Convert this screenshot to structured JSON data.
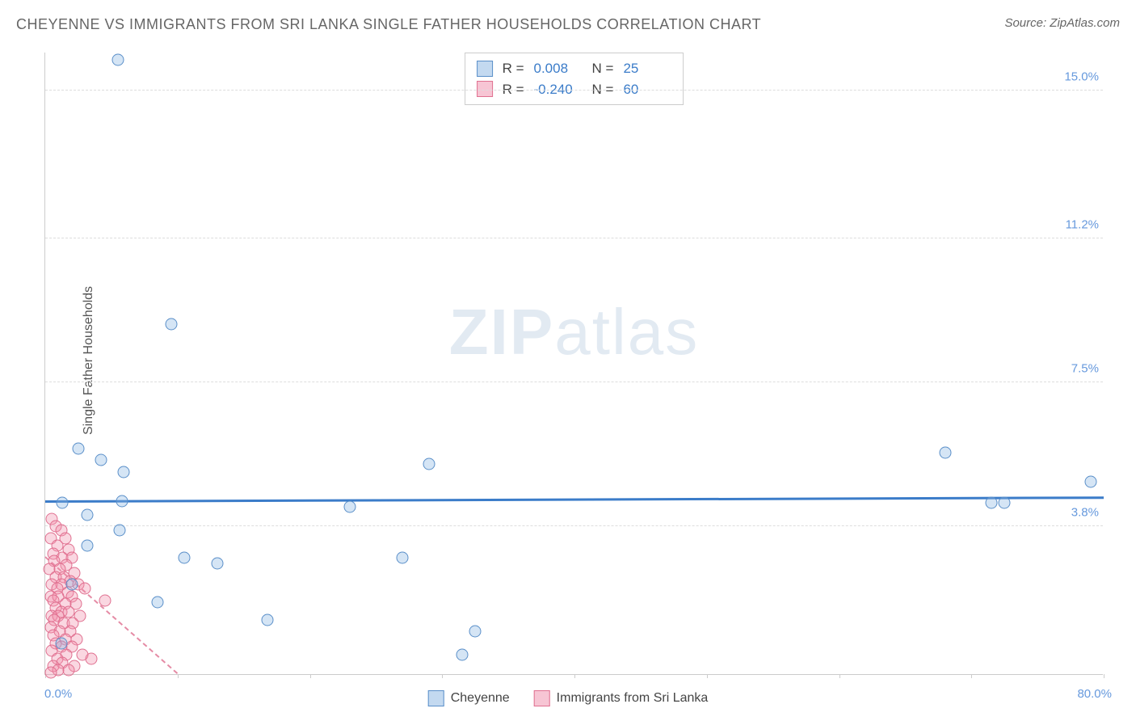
{
  "title": "CHEYENNE VS IMMIGRANTS FROM SRI LANKA SINGLE FATHER HOUSEHOLDS CORRELATION CHART",
  "source": "Source: ZipAtlas.com",
  "y_axis_label": "Single Father Households",
  "watermark_a": "ZIP",
  "watermark_b": "atlas",
  "chart": {
    "type": "scatter",
    "xlim": [
      0,
      80
    ],
    "ylim": [
      0,
      16
    ],
    "y_ticks": [
      {
        "v": 3.8,
        "label": "3.8%"
      },
      {
        "v": 7.5,
        "label": "7.5%"
      },
      {
        "v": 11.2,
        "label": "11.2%"
      },
      {
        "v": 15.0,
        "label": "15.0%"
      }
    ],
    "x_ticks": [
      0,
      10,
      20,
      30,
      40,
      50,
      60,
      70,
      80
    ],
    "x_label_min": "0.0%",
    "x_label_max": "80.0%",
    "background_color": "#ffffff",
    "grid_color": "#dddddd",
    "marker_size": 15,
    "series_a": {
      "name": "Cheyenne",
      "color_fill": "rgba(135,180,225,0.35)",
      "color_border": "#5a8fc9",
      "R_label": "R =",
      "R": "0.008",
      "N_label": "N =",
      "N": "25",
      "trend": {
        "x1": 0,
        "y1": 4.4,
        "x2": 80,
        "y2": 4.5,
        "color": "#3b7cc9",
        "width": 3,
        "dash": "solid"
      },
      "points": [
        [
          5.5,
          15.8
        ],
        [
          9.5,
          9.0
        ],
        [
          2.5,
          5.8
        ],
        [
          4.2,
          5.5
        ],
        [
          5.9,
          5.2
        ],
        [
          5.8,
          4.45
        ],
        [
          1.3,
          4.4
        ],
        [
          3.2,
          4.1
        ],
        [
          5.6,
          3.7
        ],
        [
          3.2,
          3.3
        ],
        [
          10.5,
          3.0
        ],
        [
          13.0,
          2.85
        ],
        [
          27.0,
          3.0
        ],
        [
          2.0,
          2.3
        ],
        [
          8.5,
          1.85
        ],
        [
          16.8,
          1.4
        ],
        [
          32.5,
          1.1
        ],
        [
          1.2,
          0.8
        ],
        [
          23.0,
          4.3
        ],
        [
          29.0,
          5.4
        ],
        [
          31.5,
          0.5
        ],
        [
          68.0,
          5.7
        ],
        [
          71.5,
          4.4
        ],
        [
          72.5,
          4.4
        ],
        [
          79.0,
          4.95
        ]
      ]
    },
    "series_b": {
      "name": "Immigrants from Sri Lanka",
      "color_fill": "rgba(240,140,170,0.35)",
      "color_border": "#e07090",
      "R_label": "R =",
      "R": "-0.240",
      "N_label": "N =",
      "N": "60",
      "trend": {
        "x1": 0,
        "y1": 3.0,
        "x2": 10,
        "y2": 0.0,
        "color": "#e58ba5",
        "width": 2,
        "dash": "dashed"
      },
      "points": [
        [
          0.5,
          4.0
        ],
        [
          0.8,
          3.8
        ],
        [
          1.2,
          3.7
        ],
        [
          0.4,
          3.5
        ],
        [
          1.5,
          3.5
        ],
        [
          0.9,
          3.3
        ],
        [
          1.8,
          3.2
        ],
        [
          0.6,
          3.1
        ],
        [
          1.3,
          3.0
        ],
        [
          2.0,
          3.0
        ],
        [
          0.7,
          2.9
        ],
        [
          1.6,
          2.8
        ],
        [
          0.3,
          2.7
        ],
        [
          1.1,
          2.7
        ],
        [
          2.2,
          2.6
        ],
        [
          0.8,
          2.5
        ],
        [
          1.4,
          2.5
        ],
        [
          1.9,
          2.4
        ],
        [
          0.5,
          2.3
        ],
        [
          1.2,
          2.3
        ],
        [
          2.5,
          2.3
        ],
        [
          0.9,
          2.2
        ],
        [
          1.7,
          2.1
        ],
        [
          0.4,
          2.0
        ],
        [
          1.0,
          2.0
        ],
        [
          2.0,
          2.0
        ],
        [
          3.0,
          2.2
        ],
        [
          0.6,
          1.9
        ],
        [
          1.5,
          1.8
        ],
        [
          2.3,
          1.8
        ],
        [
          0.8,
          1.7
        ],
        [
          1.2,
          1.6
        ],
        [
          1.8,
          1.6
        ],
        [
          0.5,
          1.5
        ],
        [
          1.0,
          1.5
        ],
        [
          2.6,
          1.5
        ],
        [
          0.7,
          1.4
        ],
        [
          1.4,
          1.3
        ],
        [
          2.1,
          1.3
        ],
        [
          0.4,
          1.2
        ],
        [
          1.1,
          1.1
        ],
        [
          1.9,
          1.1
        ],
        [
          0.6,
          1.0
        ],
        [
          1.5,
          0.9
        ],
        [
          2.4,
          0.9
        ],
        [
          0.8,
          0.8
        ],
        [
          1.2,
          0.7
        ],
        [
          2.0,
          0.7
        ],
        [
          0.5,
          0.6
        ],
        [
          1.6,
          0.5
        ],
        [
          2.8,
          0.5
        ],
        [
          0.9,
          0.4
        ],
        [
          1.3,
          0.3
        ],
        [
          3.5,
          0.4
        ],
        [
          0.6,
          0.2
        ],
        [
          2.2,
          0.2
        ],
        [
          4.5,
          1.9
        ],
        [
          1.0,
          0.1
        ],
        [
          1.8,
          0.1
        ],
        [
          0.4,
          0.05
        ]
      ]
    }
  },
  "bottom_legend": {
    "a": "Cheyenne",
    "b": "Immigrants from Sri Lanka"
  }
}
